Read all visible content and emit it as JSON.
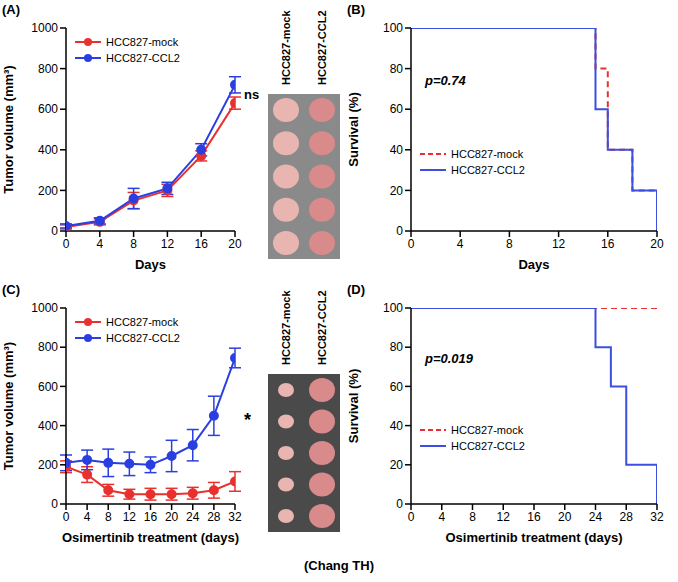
{
  "chart_data": [
    {
      "panel": "(A)",
      "type": "line",
      "x_label": "Days",
      "y_label": "Tumor volume (mm³)",
      "x": [
        0,
        4,
        8,
        12,
        16,
        20
      ],
      "xlim": [
        0,
        20
      ],
      "xticks": [
        0,
        4,
        8,
        12,
        16,
        20
      ],
      "ylim": [
        0,
        1000
      ],
      "yticks": [
        0,
        200,
        400,
        600,
        800,
        1000
      ],
      "legend": "top-left",
      "annotation": "ns",
      "series": [
        {
          "name": "HCC827-mock",
          "color": "#e8312f",
          "marker": "circle",
          "line_style": "solid",
          "values": [
            20,
            45,
            150,
            200,
            370,
            630
          ],
          "errors": [
            10,
            15,
            40,
            30,
            25,
            30
          ]
        },
        {
          "name": "HCC827-CCL2",
          "color": "#2a3fe0",
          "marker": "circle",
          "line_style": "solid",
          "values": [
            25,
            50,
            160,
            210,
            400,
            720
          ],
          "errors": [
            10,
            15,
            50,
            30,
            30,
            40
          ]
        }
      ]
    },
    {
      "panel": "(B)",
      "type": "step",
      "x_label": "Days",
      "y_label": "Survival (%)",
      "x": [
        0,
        15,
        16,
        18,
        20
      ],
      "xlim": [
        0,
        20
      ],
      "xticks": [
        0,
        4,
        8,
        12,
        16,
        20
      ],
      "ylim": [
        0,
        100
      ],
      "yticks": [
        0,
        20,
        40,
        60,
        80,
        100
      ],
      "legend": "left",
      "annotation": "p=0.74",
      "series": [
        {
          "name": "HCC827-mock",
          "color": "#e8312f",
          "line_style": "dashed",
          "values": [
            100,
            80,
            40,
            20,
            0
          ]
        },
        {
          "name": "HCC827-CCL2",
          "color": "#3b4fe0",
          "line_style": "solid",
          "values": [
            100,
            60,
            40,
            20,
            0
          ]
        }
      ]
    },
    {
      "panel": "(C)",
      "type": "line",
      "x_label": "Osimertinib treatment (days)",
      "y_label": "Tumor volume (mm³)",
      "x": [
        0,
        4,
        8,
        12,
        16,
        20,
        24,
        28,
        32
      ],
      "xlim": [
        0,
        32
      ],
      "xticks": [
        0,
        4,
        8,
        12,
        16,
        20,
        24,
        28,
        32
      ],
      "ylim": [
        0,
        1000
      ],
      "yticks": [
        0,
        200,
        400,
        600,
        800,
        1000
      ],
      "legend": "top-left",
      "annotation": "*",
      "series": [
        {
          "name": "HCC827-mock",
          "color": "#e8312f",
          "marker": "circle",
          "line_style": "solid",
          "values": [
            190,
            150,
            70,
            50,
            50,
            50,
            55,
            70,
            115
          ],
          "errors": [
            30,
            40,
            30,
            25,
            30,
            30,
            30,
            40,
            50
          ]
        },
        {
          "name": "HCC827-CCL2",
          "color": "#2a3fe0",
          "marker": "circle",
          "line_style": "solid",
          "values": [
            210,
            225,
            210,
            205,
            200,
            245,
            300,
            450,
            745
          ],
          "errors": [
            40,
            50,
            70,
            60,
            40,
            80,
            80,
            100,
            50
          ]
        }
      ]
    },
    {
      "panel": "(D)",
      "type": "step",
      "x_label": "Osimertinib treatment (days)",
      "y_label": "Survival (%)",
      "x": [
        0,
        24,
        26,
        28,
        32
      ],
      "xlim": [
        0,
        32
      ],
      "xticks": [
        0,
        4,
        8,
        12,
        16,
        20,
        24,
        28,
        32
      ],
      "ylim": [
        0,
        100
      ],
      "yticks": [
        0,
        20,
        40,
        60,
        80,
        100
      ],
      "legend": "left",
      "annotation": "p=0.019",
      "series": [
        {
          "name": "HCC827-mock",
          "color": "#e8312f",
          "line_style": "dashed",
          "values": [
            100,
            100,
            100,
            100,
            100
          ]
        },
        {
          "name": "HCC827-CCL2",
          "color": "#3b4fe0",
          "line_style": "solid",
          "values": [
            100,
            80,
            60,
            20,
            0
          ]
        }
      ]
    }
  ],
  "photos": [
    {
      "labels": [
        "HCC827-mock",
        "HCC827-CCL2"
      ]
    },
    {
      "labels": [
        "HCC827-mock",
        "HCC827-CCL2"
      ]
    }
  ],
  "caption": "(Chang TH)"
}
